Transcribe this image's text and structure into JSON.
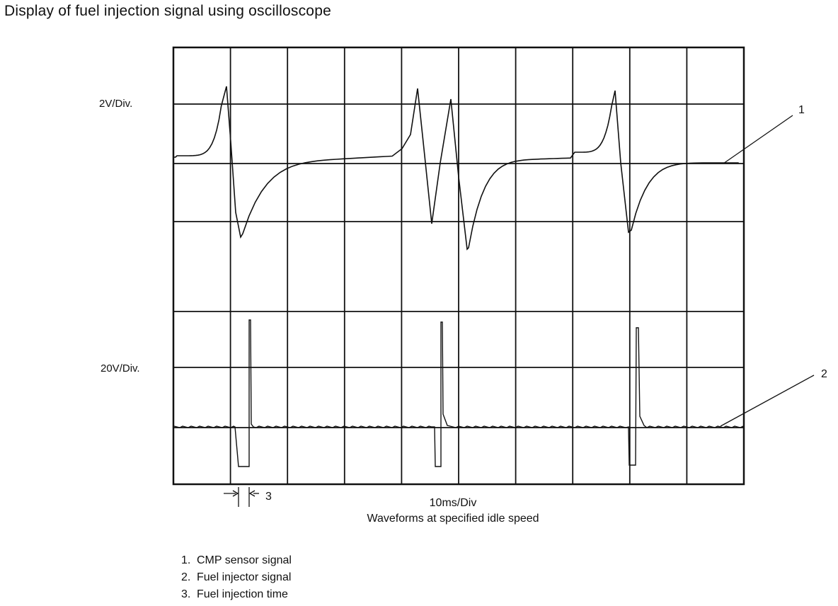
{
  "title": "Display of fuel injection signal using oscilloscope",
  "scope": {
    "upper_scale": "2V/Div.",
    "lower_scale": "20V/Div.",
    "time_scale": "10ms/Div",
    "caption": "Waveforms at specified idle speed",
    "callouts": [
      "1",
      "2",
      "3"
    ]
  },
  "legend": [
    {
      "num": "1.",
      "text": "CMP sensor signal"
    },
    {
      "num": "2.",
      "text": "Fuel injector signal"
    },
    {
      "num": "3.",
      "text": "Fuel injection time"
    }
  ]
}
